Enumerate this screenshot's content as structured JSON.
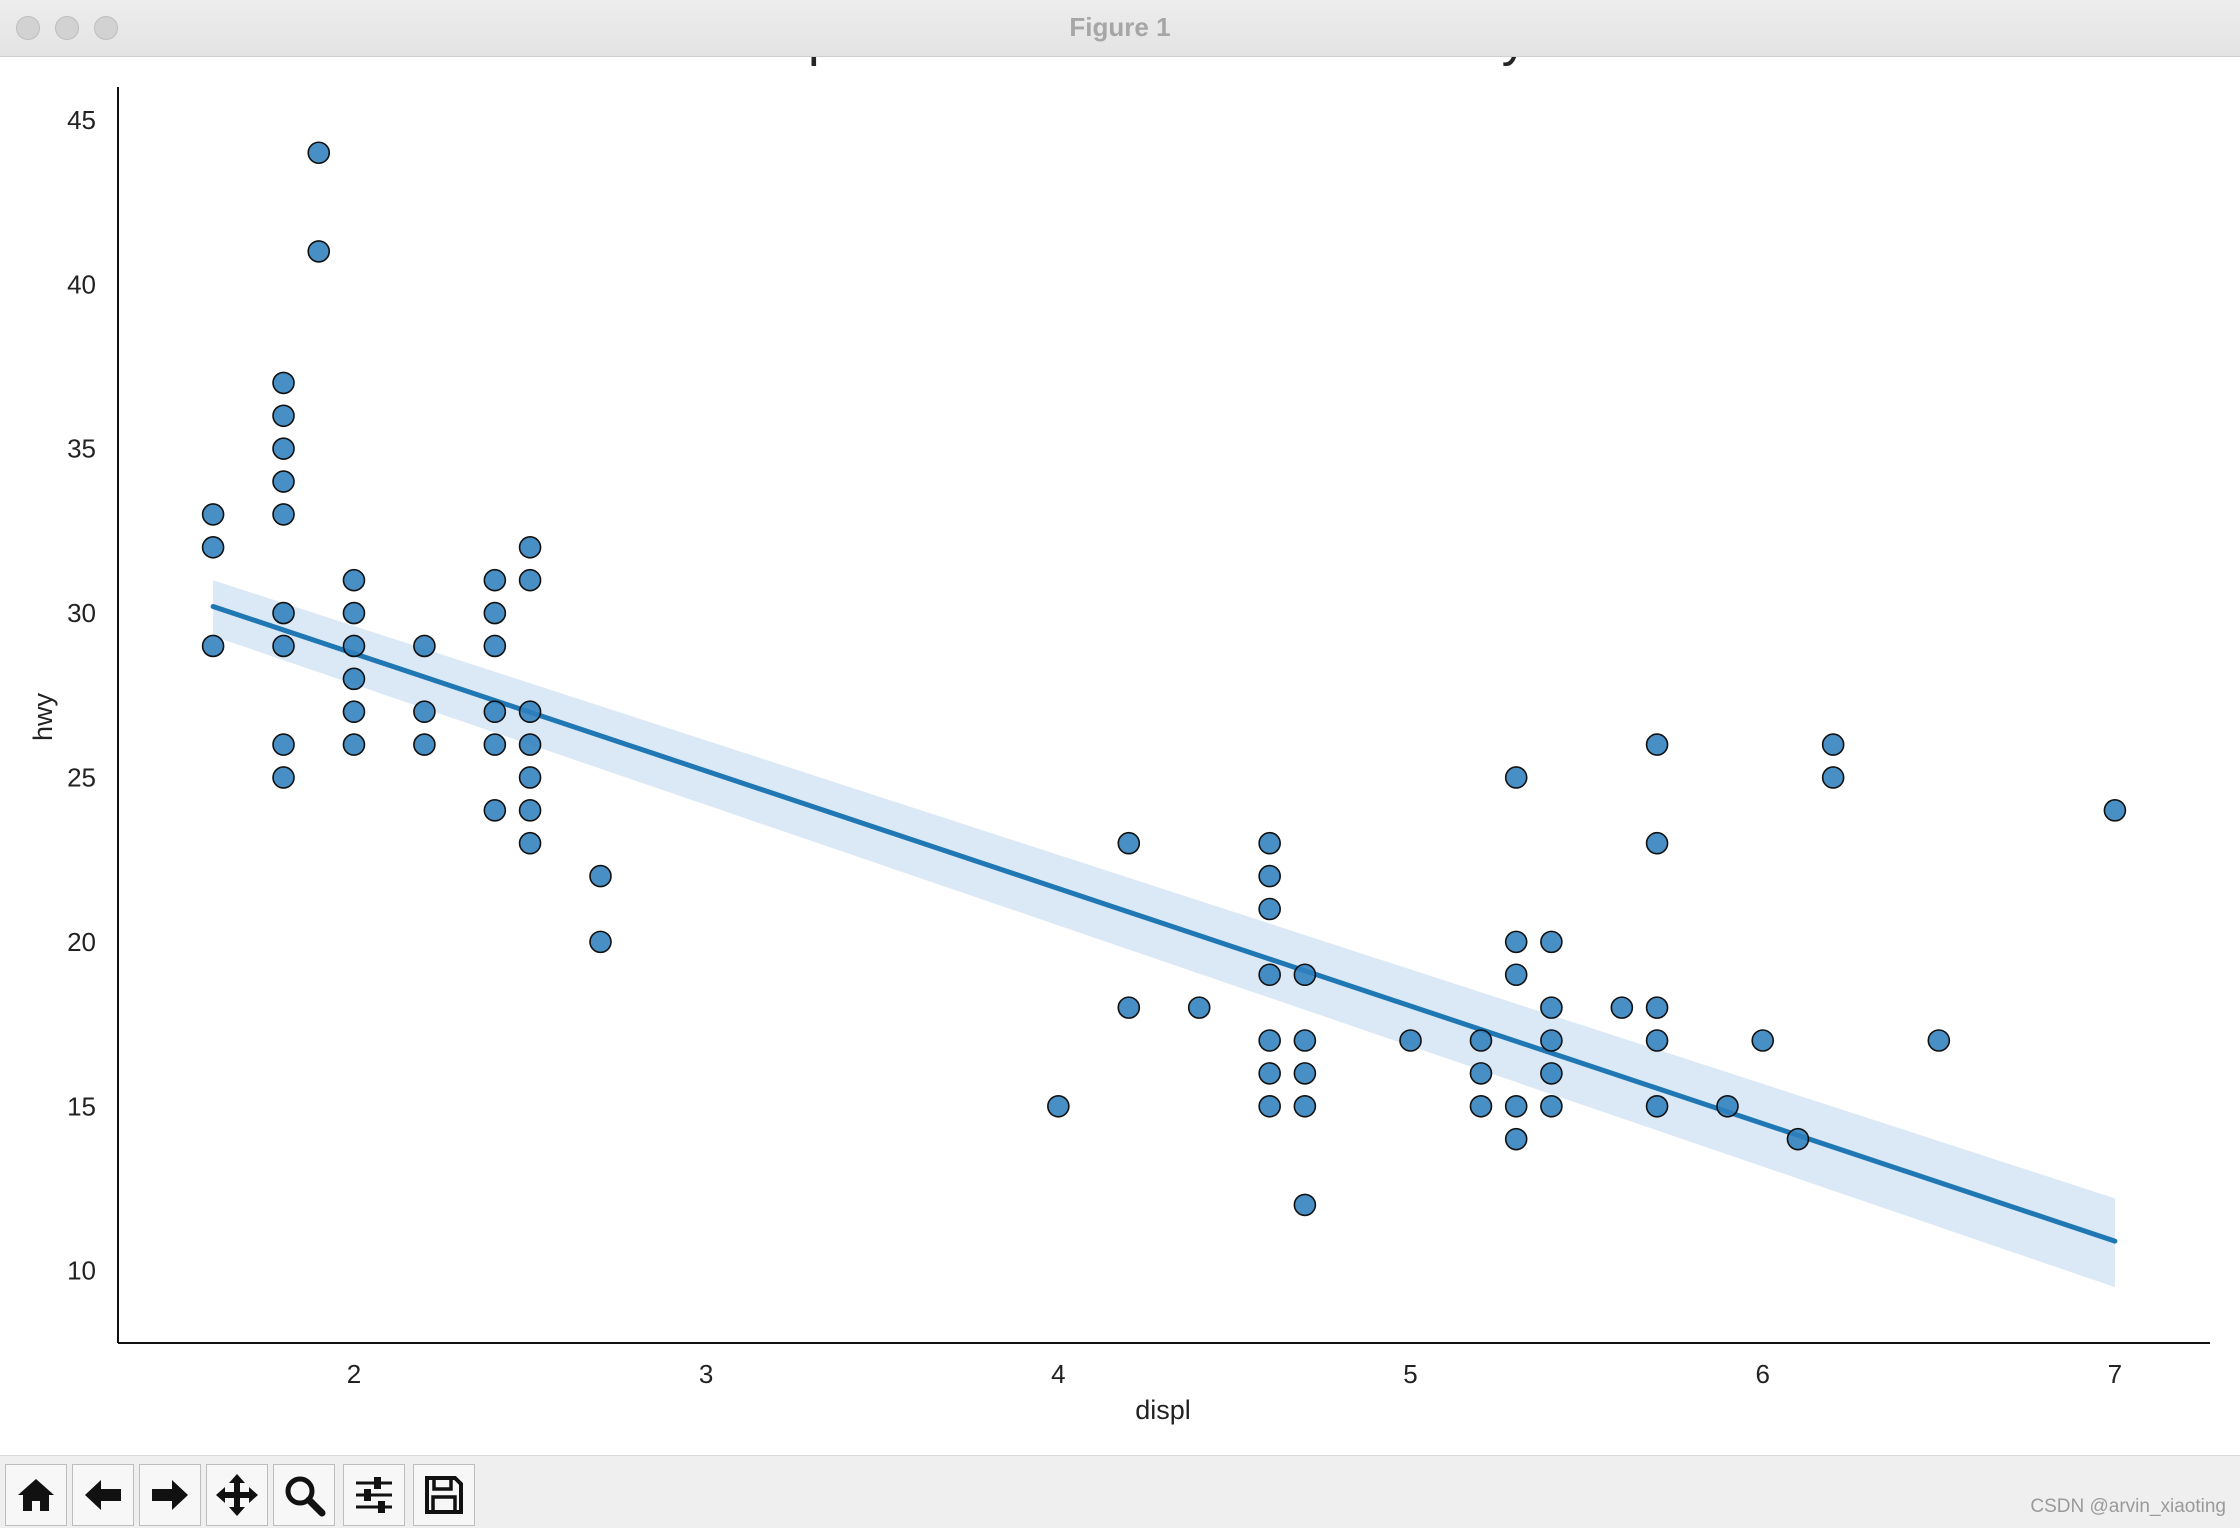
{
  "window": {
    "title": "Figure 1"
  },
  "toolbar": {
    "buttons": [
      {
        "name": "home-icon",
        "label": "Home"
      },
      {
        "name": "back-icon",
        "label": "Back"
      },
      {
        "name": "forward-icon",
        "label": "Forward"
      },
      {
        "name": "pan-icon",
        "label": "Pan"
      },
      {
        "name": "zoom-icon",
        "label": "Zoom"
      },
      {
        "name": "configure-subplots-icon",
        "label": "Configure subplots"
      },
      {
        "name": "save-icon",
        "label": "Save"
      }
    ]
  },
  "watermark": "CSDN @arvin_xiaoting",
  "colors": {
    "point": "#2f7fbd",
    "line": "#1f77b4",
    "band": "#cfe0f1"
  },
  "chart_data": {
    "type": "scatter",
    "title": "Scatterplot with line of best fit for all cylinders",
    "xlabel": "displ",
    "ylabel": "hwy",
    "xlim": [
      1.33,
      7.27
    ],
    "ylim": [
      7.8,
      46.0
    ],
    "xticks": [
      2,
      3,
      4,
      5,
      6,
      7
    ],
    "yticks": [
      10,
      15,
      20,
      25,
      30,
      35,
      40,
      45
    ],
    "grid": false,
    "points": [
      [
        1.6,
        33
      ],
      [
        1.6,
        32
      ],
      [
        1.6,
        29
      ],
      [
        1.8,
        37
      ],
      [
        1.8,
        36
      ],
      [
        1.8,
        35
      ],
      [
        1.8,
        34
      ],
      [
        1.8,
        33
      ],
      [
        1.8,
        30
      ],
      [
        1.8,
        29
      ],
      [
        1.8,
        26
      ],
      [
        1.8,
        25
      ],
      [
        1.9,
        44
      ],
      [
        1.9,
        41
      ],
      [
        2.0,
        31
      ],
      [
        2.0,
        30
      ],
      [
        2.0,
        29
      ],
      [
        2.0,
        28
      ],
      [
        2.0,
        27
      ],
      [
        2.0,
        26
      ],
      [
        2.2,
        29
      ],
      [
        2.2,
        27
      ],
      [
        2.2,
        26
      ],
      [
        2.4,
        31
      ],
      [
        2.4,
        30
      ],
      [
        2.4,
        29
      ],
      [
        2.4,
        27
      ],
      [
        2.4,
        26
      ],
      [
        2.4,
        24
      ],
      [
        2.5,
        32
      ],
      [
        2.5,
        31
      ],
      [
        2.5,
        27
      ],
      [
        2.5,
        26
      ],
      [
        2.5,
        25
      ],
      [
        2.5,
        24
      ],
      [
        2.5,
        23
      ],
      [
        2.7,
        22
      ],
      [
        2.7,
        20
      ],
      [
        4.0,
        15
      ],
      [
        4.2,
        23
      ],
      [
        4.2,
        18
      ],
      [
        4.4,
        18
      ],
      [
        4.6,
        23
      ],
      [
        4.6,
        22
      ],
      [
        4.6,
        21
      ],
      [
        4.6,
        19
      ],
      [
        4.6,
        17
      ],
      [
        4.6,
        16
      ],
      [
        4.6,
        15
      ],
      [
        4.7,
        19
      ],
      [
        4.7,
        17
      ],
      [
        4.7,
        16
      ],
      [
        4.7,
        15
      ],
      [
        4.7,
        12
      ],
      [
        5.0,
        17
      ],
      [
        5.2,
        17
      ],
      [
        5.2,
        16
      ],
      [
        5.2,
        15
      ],
      [
        5.3,
        25
      ],
      [
        5.3,
        20
      ],
      [
        5.3,
        19
      ],
      [
        5.3,
        15
      ],
      [
        5.3,
        14
      ],
      [
        5.4,
        20
      ],
      [
        5.4,
        18
      ],
      [
        5.4,
        17
      ],
      [
        5.4,
        16
      ],
      [
        5.4,
        15
      ],
      [
        5.6,
        18
      ],
      [
        5.7,
        26
      ],
      [
        5.7,
        23
      ],
      [
        5.7,
        18
      ],
      [
        5.7,
        17
      ],
      [
        5.7,
        15
      ],
      [
        5.9,
        15
      ],
      [
        6.0,
        17
      ],
      [
        6.1,
        14
      ],
      [
        6.2,
        26
      ],
      [
        6.2,
        25
      ],
      [
        6.5,
        17
      ],
      [
        7.0,
        24
      ]
    ],
    "fit": {
      "x": [
        1.6,
        7.0
      ],
      "y": [
        30.2,
        10.9
      ]
    },
    "ci_band": {
      "x": [
        1.6,
        7.0
      ],
      "upper": [
        31.0,
        12.2
      ],
      "lower": [
        29.3,
        9.5
      ]
    }
  }
}
